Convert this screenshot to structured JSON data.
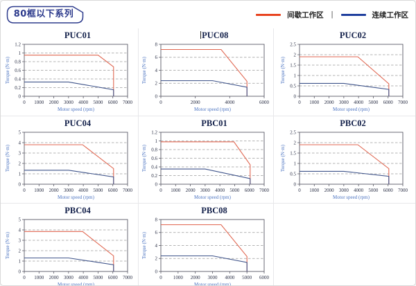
{
  "page": {
    "title_badge": "80框以下系列"
  },
  "legend": {
    "separator": "|",
    "items": [
      {
        "label": "间歇工作区",
        "color": "#e8431f"
      },
      {
        "label": "连续工作区",
        "color": "#1f3f9e"
      }
    ]
  },
  "colors": {
    "badge": "#2c3a8c",
    "grid": "#9a9a9a",
    "axis": "#5a5a66",
    "axis_label": "#4a72c0",
    "tick_text": "#2a2f45",
    "title_text": "#13204a",
    "series_red": "#e06650",
    "series_blue": "#3d5289"
  },
  "chart_data": [
    {
      "type": "line",
      "title": "PUC01",
      "title_caret": false,
      "xlabel": "Motor speed (rpm)",
      "ylabel": "Torque (N·m)",
      "xlim": [
        0,
        7000
      ],
      "ylim": [
        0,
        1.2
      ],
      "xticks": [
        0,
        1000,
        2000,
        3000,
        4000,
        5000,
        6000,
        7000
      ],
      "yticks": [
        0,
        0.2,
        0.4,
        0.6,
        0.8,
        1,
        1.2
      ],
      "grid": "horizontal-dashed",
      "series": [
        {
          "name": "间歇工作区",
          "color": "#e06650",
          "points": [
            [
              0,
              0.95
            ],
            [
              5000,
              0.95
            ],
            [
              6050,
              0.68
            ],
            [
              6050,
              0
            ]
          ]
        },
        {
          "name": "连续工作区",
          "color": "#3d5289",
          "points": [
            [
              0,
              0.33
            ],
            [
              3000,
              0.33
            ],
            [
              6050,
              0.15
            ],
            [
              6050,
              0
            ]
          ]
        }
      ]
    },
    {
      "type": "line",
      "title": "PUC08",
      "title_caret": true,
      "xlabel": "Motor speed (rpm)",
      "ylabel": "Torque (N·m)",
      "xlim": [
        0,
        6000
      ],
      "ylim": [
        0,
        8
      ],
      "xticks": [
        0,
        2000,
        4000,
        6000
      ],
      "yticks": [
        0,
        2,
        4,
        6,
        8
      ],
      "grid": "horizontal-dashed",
      "series": [
        {
          "name": "间歇工作区",
          "color": "#e06650",
          "points": [
            [
              0,
              7.2
            ],
            [
              3500,
              7.2
            ],
            [
              5000,
              2.3
            ],
            [
              5000,
              0
            ]
          ]
        },
        {
          "name": "连续工作区",
          "color": "#3d5289",
          "points": [
            [
              0,
              2.4
            ],
            [
              3000,
              2.4
            ],
            [
              5000,
              1.4
            ],
            [
              5000,
              0
            ]
          ]
        }
      ]
    },
    {
      "type": "line",
      "title": "PUC02",
      "title_caret": false,
      "xlabel": "Motor speed (rpm)",
      "ylabel": "Torque (N·m)",
      "xlim": [
        0,
        7000
      ],
      "ylim": [
        0,
        2.5
      ],
      "xticks": [
        0,
        1000,
        2000,
        3000,
        4000,
        5000,
        6000,
        7000
      ],
      "yticks": [
        0,
        0.5,
        1,
        1.5,
        2,
        2.5
      ],
      "grid": "horizontal-dashed",
      "series": [
        {
          "name": "间歇工作区",
          "color": "#e06650",
          "points": [
            [
              0,
              1.9
            ],
            [
              3950,
              1.9
            ],
            [
              6050,
              0.6
            ],
            [
              6050,
              0
            ]
          ]
        },
        {
          "name": "连续工作区",
          "color": "#3d5289",
          "points": [
            [
              0,
              0.62
            ],
            [
              3000,
              0.62
            ],
            [
              6050,
              0.33
            ],
            [
              6050,
              0
            ]
          ]
        }
      ]
    },
    {
      "type": "line",
      "title": "PUC04",
      "title_caret": false,
      "xlabel": "Motor speed (rpm)",
      "ylabel": "Torque (N·m)",
      "xlim": [
        0,
        7000
      ],
      "ylim": [
        0,
        5
      ],
      "xticks": [
        0,
        1000,
        2000,
        3000,
        4000,
        5000,
        6000,
        7000
      ],
      "yticks": [
        0,
        1,
        2,
        3,
        4,
        5
      ],
      "grid": "horizontal-dashed",
      "series": [
        {
          "name": "间歇工作区",
          "color": "#e06650",
          "points": [
            [
              0,
              3.8
            ],
            [
              3950,
              3.8
            ],
            [
              6050,
              1.5
            ],
            [
              6050,
              0
            ]
          ]
        },
        {
          "name": "连续工作区",
          "color": "#3d5289",
          "points": [
            [
              0,
              1.35
            ],
            [
              3000,
              1.35
            ],
            [
              6050,
              0.7
            ],
            [
              6050,
              0
            ]
          ]
        }
      ]
    },
    {
      "type": "line",
      "title": "PBC01",
      "title_caret": false,
      "xlabel": "Motor speed (rpm)",
      "ylabel": "Torque (N·m)",
      "xlim": [
        0,
        7000
      ],
      "ylim": [
        0,
        1.2
      ],
      "xticks": [
        0,
        1000,
        2000,
        3000,
        4000,
        5000,
        6000,
        7000
      ],
      "yticks": [
        0,
        0.2,
        0.4,
        0.6,
        0.8,
        1,
        1.2
      ],
      "grid": "horizontal-dashed",
      "series": [
        {
          "name": "间歇工作区",
          "color": "#e06650",
          "points": [
            [
              0,
              0.98
            ],
            [
              4950,
              0.98
            ],
            [
              6050,
              0.45
            ],
            [
              6050,
              0
            ]
          ]
        },
        {
          "name": "连续工作区",
          "color": "#3d5289",
          "points": [
            [
              0,
              0.35
            ],
            [
              3000,
              0.35
            ],
            [
              6050,
              0.13
            ],
            [
              6050,
              0
            ]
          ]
        }
      ]
    },
    {
      "type": "line",
      "title": "PBC02",
      "title_caret": false,
      "xlabel": "Motor speed (rpm)",
      "ylabel": "Torque (N·m)",
      "xlim": [
        0,
        7000
      ],
      "ylim": [
        0,
        2.5
      ],
      "xticks": [
        0,
        1000,
        2000,
        3000,
        4000,
        5000,
        6000,
        7000
      ],
      "yticks": [
        0,
        0.5,
        1,
        1.5,
        2,
        2.5
      ],
      "grid": "horizontal-dashed",
      "series": [
        {
          "name": "间歇工作区",
          "color": "#e06650",
          "points": [
            [
              0,
              1.9
            ],
            [
              3950,
              1.9
            ],
            [
              6050,
              0.75
            ],
            [
              6050,
              0
            ]
          ]
        },
        {
          "name": "连续工作区",
          "color": "#3d5289",
          "points": [
            [
              0,
              0.62
            ],
            [
              3000,
              0.62
            ],
            [
              6050,
              0.38
            ],
            [
              6050,
              0
            ]
          ]
        }
      ]
    },
    {
      "type": "line",
      "title": "PBC04",
      "title_caret": false,
      "xlabel": "Motor speed (rpm)",
      "ylabel": "Torque (N·m)",
      "xlim": [
        0,
        7000
      ],
      "ylim": [
        0,
        5
      ],
      "xticks": [
        0,
        1000,
        2000,
        3000,
        4000,
        5000,
        6000,
        7000
      ],
      "yticks": [
        0,
        1,
        2,
        3,
        4,
        5
      ],
      "grid": "horizontal-dashed",
      "series": [
        {
          "name": "间歇工作区",
          "color": "#e06650",
          "points": [
            [
              0,
              3.85
            ],
            [
              3950,
              3.85
            ],
            [
              6050,
              1.5
            ],
            [
              6050,
              0
            ]
          ]
        },
        {
          "name": "连续工作区",
          "color": "#3d5289",
          "points": [
            [
              0,
              1.3
            ],
            [
              3000,
              1.3
            ],
            [
              6050,
              0.65
            ],
            [
              6050,
              0
            ]
          ]
        }
      ]
    },
    {
      "type": "line",
      "title": "PBC08",
      "title_caret": false,
      "xlabel": "Motor speed (rpm)",
      "ylabel": "Torque (N·m)",
      "xlim": [
        0,
        6000
      ],
      "ylim": [
        0,
        8
      ],
      "xticks": [
        0,
        1000,
        2000,
        3000,
        4000,
        5000,
        6000
      ],
      "yticks": [
        0,
        2,
        4,
        6,
        8
      ],
      "grid": "horizontal-dashed",
      "series": [
        {
          "name": "间歇工作区",
          "color": "#e06650",
          "points": [
            [
              0,
              7.2
            ],
            [
              3500,
              7.2
            ],
            [
              5000,
              2.3
            ],
            [
              5000,
              0
            ]
          ]
        },
        {
          "name": "连续工作区",
          "color": "#3d5289",
          "points": [
            [
              0,
              2.4
            ],
            [
              3000,
              2.4
            ],
            [
              5000,
              1.4
            ],
            [
              5000,
              0
            ]
          ]
        }
      ]
    }
  ]
}
